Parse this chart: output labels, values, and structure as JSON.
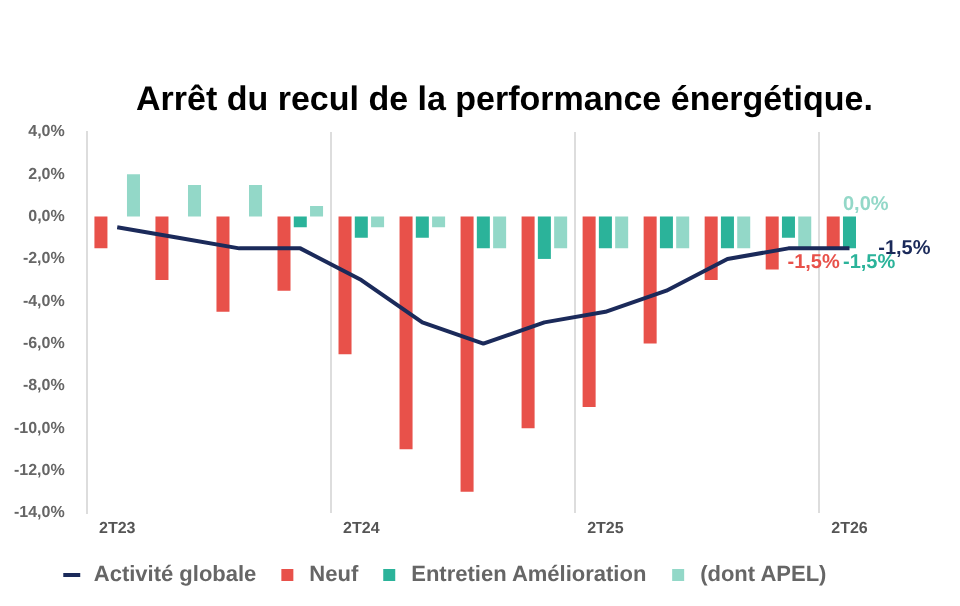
{
  "chart_data": {
    "type": "bar",
    "title": "Arrêt du recul de la performance énergétique.",
    "categories": [
      "2T23",
      null,
      null,
      null,
      "2T24",
      null,
      null,
      null,
      "2T25",
      null,
      null,
      null,
      "2T26"
    ],
    "series": [
      {
        "name": "Neuf",
        "color": "#e8514a",
        "values": [
          -1.5,
          -3,
          -4.5,
          -3.5,
          -6.5,
          -11,
          -13,
          -10,
          -9,
          -6,
          -3,
          -2.5,
          -1.5
        ],
        "value_labels": [
          null,
          null,
          null,
          null,
          null,
          null,
          null,
          null,
          null,
          null,
          null,
          null,
          "-1,5%"
        ]
      },
      {
        "name": "Entretien Amélioration",
        "color": "#2bb39a",
        "values": [
          0,
          0,
          0,
          -0.5,
          -1,
          -1,
          -1.5,
          -2,
          -1.5,
          -1.5,
          -1.5,
          -1,
          -1.5
        ],
        "value_labels": [
          null,
          null,
          null,
          null,
          null,
          null,
          null,
          null,
          null,
          null,
          null,
          null,
          "-1,5%"
        ]
      },
      {
        "name": "(dont APEL)",
        "color": "#93d8c8",
        "values": [
          2,
          1.5,
          1.5,
          0.5,
          -0.5,
          -0.5,
          -1.5,
          -1.5,
          -1.5,
          -1.5,
          -1.5,
          -1.5,
          0
        ],
        "value_labels": [
          null,
          null,
          null,
          null,
          null,
          null,
          null,
          null,
          null,
          null,
          null,
          null,
          "0,0%"
        ]
      },
      {
        "name": "Activité globale",
        "type": "line",
        "color": "#1b2a5a",
        "values": [
          -0.5,
          -1,
          -1.5,
          -1.5,
          -3,
          -5,
          -6,
          -5,
          -4.5,
          -3.5,
          -2,
          -1.5,
          -1.5
        ],
        "value_labels": [
          null,
          null,
          null,
          null,
          null,
          null,
          null,
          null,
          null,
          null,
          null,
          null,
          "-1,5%"
        ]
      }
    ],
    "ylim": [
      -14,
      4
    ],
    "yticks": [
      {
        "value": -14,
        "label": "-14,0%"
      },
      {
        "value": -12,
        "label": "-12,0%"
      },
      {
        "value": -10,
        "label": "-10,0%"
      },
      {
        "value": -8,
        "label": "-8,0%"
      },
      {
        "value": -6,
        "label": "-6,0%"
      },
      {
        "value": -4,
        "label": "-4,0%"
      },
      {
        "value": -2,
        "label": "-2,0%"
      },
      {
        "value": 0,
        "label": "0,0%"
      },
      {
        "value": 2,
        "label": "2,0%"
      },
      {
        "value": 4,
        "label": "4,0%"
      }
    ],
    "grid": "x",
    "legend": "bottom",
    "marker": "none",
    "line_style": "solid"
  }
}
